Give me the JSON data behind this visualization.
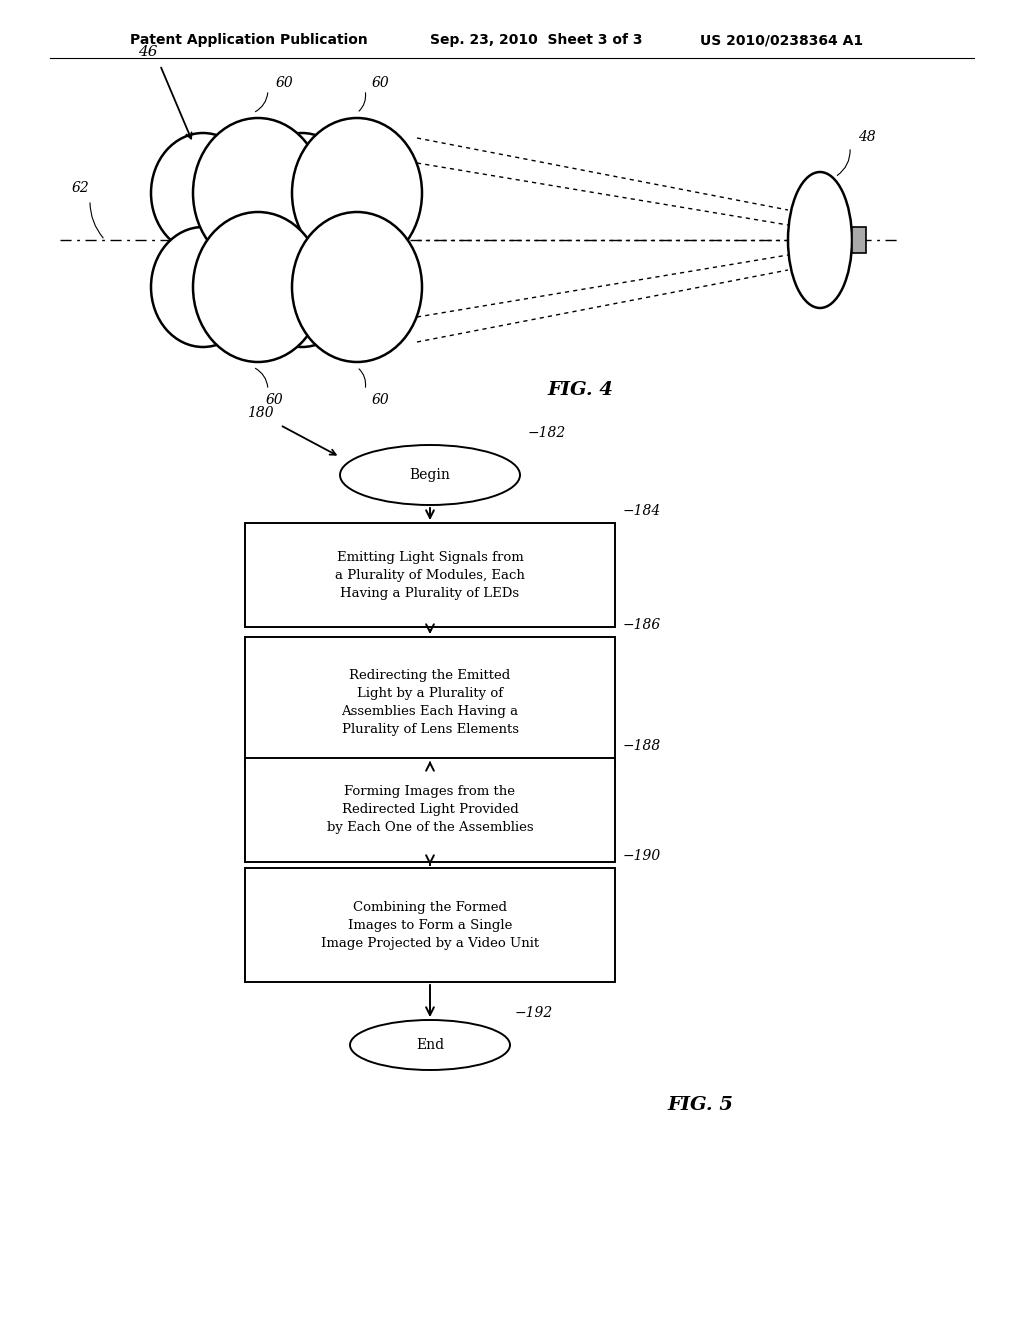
{
  "bg_color": "#ffffff",
  "header_line1": "Patent Application Publication",
  "header_line2": "Sep. 23, 2010  Sheet 3 of 3",
  "header_line3": "US 2010/0238364 A1",
  "fig4_label": "FIG. 4",
  "fig5_label": "FIG. 5",
  "line_color": "#000000",
  "text_color": "#000000",
  "box_184_text": "Emitting Light Signals from\na Plurality of Modules, Each\nHaving a Plurality of LEDs",
  "box_186_text": "Redirecting the Emitted\nLight by a Plurality of\nAssemblies Each Having a\nPlurality of Lens Elements",
  "box_188_text": "Forming Images from the\nRedirected Light Provided\nby Each One of the Assemblies",
  "box_190_text": "Combining the Formed\nImages to Form a Single\nImage Projected by a Video Unit"
}
